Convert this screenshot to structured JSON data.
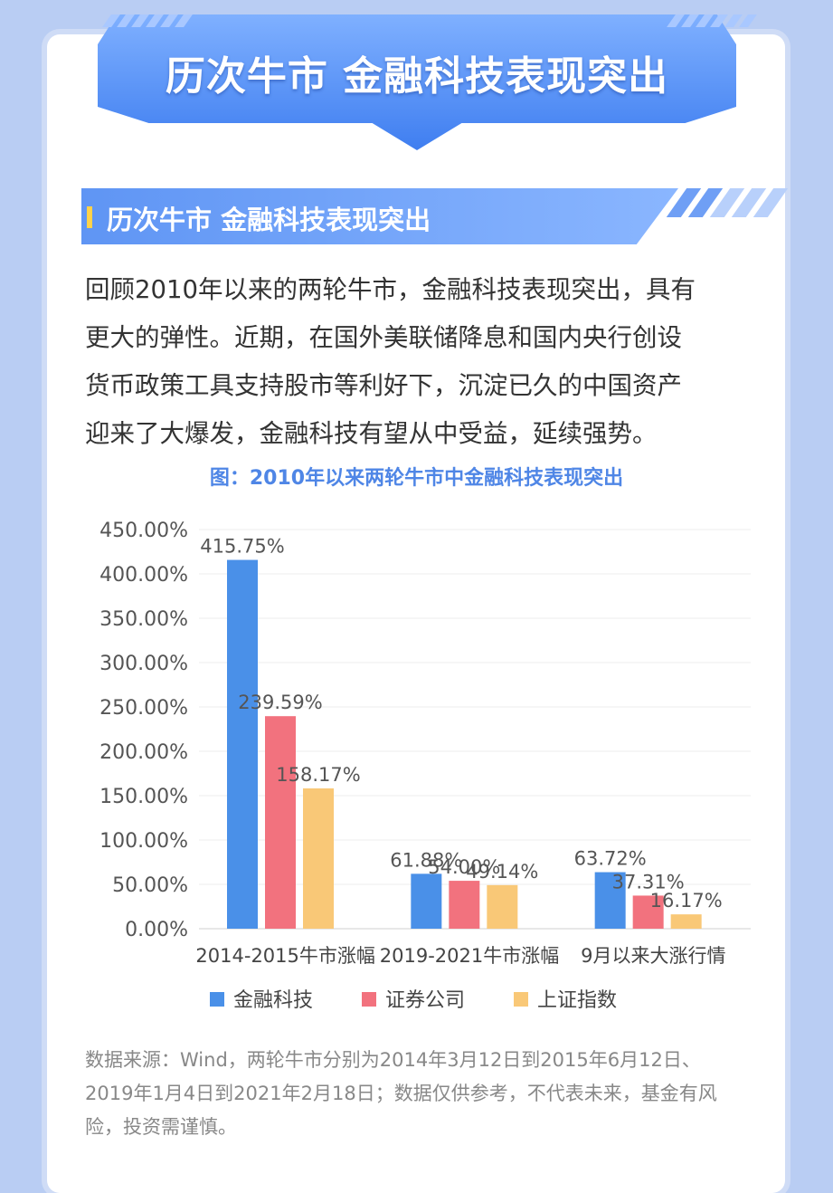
{
  "header": {
    "banner_title": "历次牛市 金融科技表现突出"
  },
  "section": {
    "title": "历次牛市 金融科技表现突出"
  },
  "intro_lines": [
    "回顾2010年以来的两轮牛市，金融科技表现突出，具有",
    "更大的弹性。近期，在国外美联储降息和国内央行创设",
    "货币政策工具支持股市等利好下，沉淀已久的中国资产",
    "迎来了大爆发，金融科技有望从中受益，延续强势。"
  ],
  "chart_data": {
    "type": "bar",
    "title": "图：2010年以来两轮牛市中金融科技表现突出",
    "categories": [
      "2014-2015牛市涨幅",
      "2019-2021牛市涨幅",
      "9月以来大涨行情"
    ],
    "series": [
      {
        "name": "金融科技",
        "color": "#4a90e8",
        "values": [
          415.75,
          61.88,
          63.72
        ],
        "labels": [
          "415.75%",
          "61.88%",
          "63.72%"
        ]
      },
      {
        "name": "证券公司",
        "color": "#f2727e",
        "values": [
          239.59,
          54.0,
          37.31
        ],
        "labels": [
          "239.59%",
          "54.00%",
          "37.31%"
        ]
      },
      {
        "name": "上证指数",
        "color": "#f9c877",
        "values": [
          158.17,
          49.14,
          16.17
        ],
        "labels": [
          "158.17%",
          "49.14%",
          "16.17%"
        ]
      }
    ],
    "y_ticks": [
      "0.00%",
      "50.00%",
      "100.00%",
      "150.00%",
      "200.00%",
      "250.00%",
      "300.00%",
      "350.00%",
      "400.00%",
      "450.00%"
    ],
    "ylim": [
      0,
      450
    ],
    "grid": true,
    "legend_position": "bottom"
  },
  "source_lines": [
    "数据来源：Wind，两轮牛市分别为2014年3月12日到2015年6月12日、",
    "2019年1月4日到2021年2月18日；数据仅供参考，不代表未来，基金有风",
    "险，投资需谨慎。"
  ]
}
